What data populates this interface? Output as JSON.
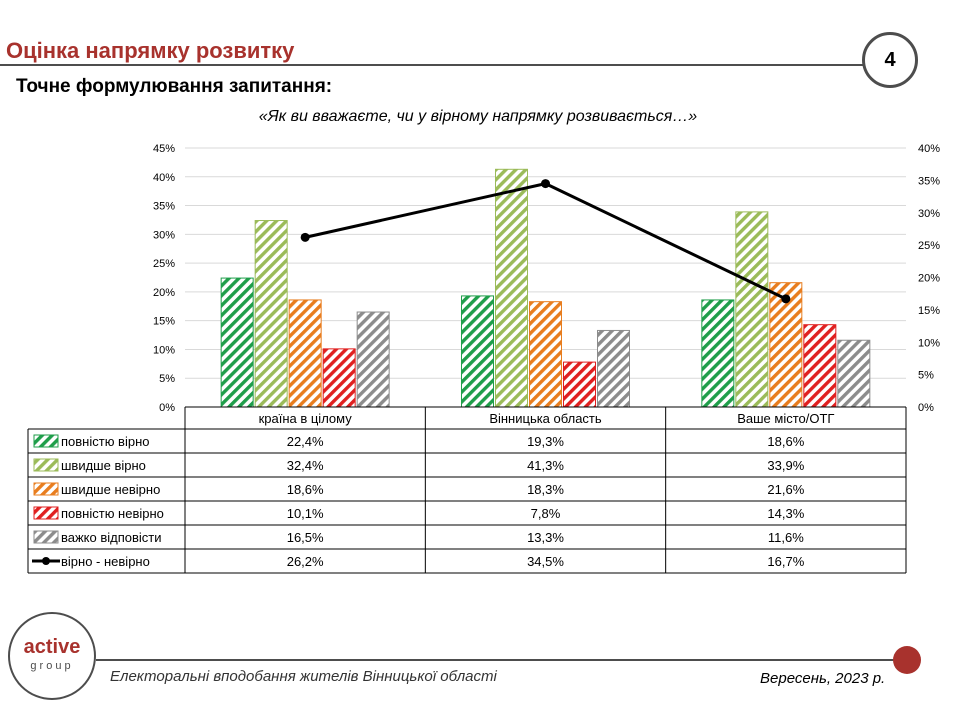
{
  "header": {
    "title": "Оцінка напрямку розвитку",
    "page_number": "4",
    "subtitle": "Точне формулювання запитання:",
    "question": "«Як ви вважаєте, чи у вірному напрямку розвивається…»"
  },
  "chart_data": {
    "type": "bar",
    "categories": [
      "країна в цілому",
      "Вінницька область",
      "Ваше місто/ОТГ"
    ],
    "ylim": [
      0,
      45
    ],
    "y_ticks": [
      "0%",
      "5%",
      "10%",
      "15%",
      "20%",
      "25%",
      "30%",
      "35%",
      "40%",
      "45%"
    ],
    "y2lim": [
      0,
      40
    ],
    "y2_ticks": [
      "0%",
      "5%",
      "10%",
      "15%",
      "20%",
      "25%",
      "30%",
      "35%",
      "40%"
    ],
    "series": [
      {
        "name": "повністю вірно",
        "color": "#1f9e4a",
        "values": [
          22.4,
          19.3,
          18.6
        ],
        "labels": [
          "22,4%",
          "19,3%",
          "18,6%"
        ]
      },
      {
        "name": "швидше вірно",
        "color": "#9bbb59",
        "values": [
          32.4,
          41.3,
          33.9
        ],
        "labels": [
          "32,4%",
          "41,3%",
          "33,9%"
        ]
      },
      {
        "name": "швидше невірно",
        "color": "#e87d1e",
        "values": [
          18.6,
          18.3,
          21.6
        ],
        "labels": [
          "18,6%",
          "18,3%",
          "21,6%"
        ]
      },
      {
        "name": "повністю  невірно",
        "color": "#e02020",
        "values": [
          10.1,
          7.8,
          14.3
        ],
        "labels": [
          "10,1%",
          "7,8%",
          "14,3%"
        ]
      },
      {
        "name": "важко відповісти",
        "color": "#8c8c8c",
        "values": [
          16.5,
          13.3,
          11.6
        ],
        "labels": [
          "16,5%",
          "13,3%",
          "11,6%"
        ]
      }
    ],
    "line_series": {
      "name": "вірно - невірно",
      "color": "#000000",
      "axis": "secondary",
      "values": [
        26.2,
        34.5,
        16.7
      ],
      "labels": [
        "26,2%",
        "34,5%",
        "16,7%"
      ]
    },
    "legend_placement": "data-table below chart"
  },
  "footer": {
    "logo_main": "active",
    "logo_sub": "group",
    "caption": "Електоральні вподобання жителів Вінницької області",
    "date": "Вересень, 2023 р."
  }
}
